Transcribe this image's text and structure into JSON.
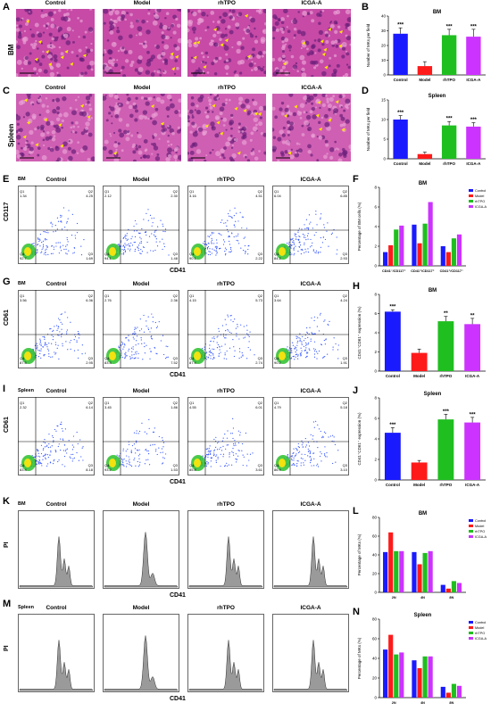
{
  "colors": {
    "control": "#1a1aff",
    "model": "#ff1a1a",
    "rhtpo": "#1fbf1f",
    "icga": "#cc33ff",
    "histo_bg": "#c64aa6",
    "flow_bg": "#ffffff"
  },
  "groups": [
    "Control",
    "Model",
    "rhTPO",
    "ICGA-A"
  ],
  "panels": {
    "A": {
      "letter": "A",
      "row": "BM"
    },
    "B": {
      "letter": "B"
    },
    "C": {
      "letter": "C",
      "row": "Spleen"
    },
    "D": {
      "letter": "D"
    },
    "E": {
      "letter": "E",
      "tissue": "BM",
      "ylabel": "CD117",
      "xlabel": "CD41",
      "quads": [
        {
          "q1": "1.34",
          "q2": "4.25",
          "q3": "1.69",
          "q4": "92.7"
        },
        {
          "q1": "2.12",
          "q2": "2.30",
          "q3": "1.48",
          "q4": "94.1"
        },
        {
          "q1": "3.16",
          "q2": "4.51",
          "q3": "2.22",
          "q4": "90.1"
        },
        {
          "q1": "6.04",
          "q2": "6.85",
          "q3": "2.93",
          "q4": "84.2"
        }
      ]
    },
    "F": {
      "letter": "F"
    },
    "G": {
      "letter": "G",
      "tissue": "BM",
      "ylabel": "CD61",
      "xlabel": "CD41",
      "quads": [
        {
          "q1": "3.56",
          "q2": "6.36",
          "q3": "2.95",
          "q4": "87.5"
        },
        {
          "q1": "2.76",
          "q2": "2.36",
          "q3": "7.52",
          "q4": "83.3"
        },
        {
          "q1": "4.15",
          "q2": "5.73",
          "q3": "2.74",
          "q4": "87.4"
        },
        {
          "q1": "3.64",
          "q2": "4.24",
          "q3": "1.91",
          "q4": "90.2"
        }
      ]
    },
    "H": {
      "letter": "H"
    },
    "I": {
      "letter": "I",
      "tissue": "Spleen",
      "ylabel": "CD61",
      "xlabel": "CD41",
      "quads": [
        {
          "q1": "2.32",
          "q2": "6.14",
          "q3": "8.18",
          "q4": "83.4"
        },
        {
          "q1": "3.45",
          "q2": "1.86",
          "q3": "1.53",
          "q4": "93.2"
        },
        {
          "q1": "4.55",
          "q2": "6.01",
          "q3": "3.61",
          "q4": "85.8"
        },
        {
          "q1": "4.79",
          "q2": "5.18",
          "q3": "3.10",
          "q4": "86.9"
        }
      ]
    },
    "J": {
      "letter": "J"
    },
    "K": {
      "letter": "K",
      "tissue": "BM",
      "ylabel": "PI",
      "xlabel": "CD41"
    },
    "L": {
      "letter": "L"
    },
    "M": {
      "letter": "M",
      "tissue": "Spleen",
      "ylabel": "PI",
      "xlabel": "CD41"
    },
    "N": {
      "letter": "N"
    }
  },
  "chart_data": [
    {
      "id": "B",
      "type": "bar",
      "title": "BM",
      "ylabel": "Number of MKs per field",
      "categories": [
        "Control",
        "Model",
        "rhTPO",
        "ICGA-A"
      ],
      "values": [
        28,
        6,
        27,
        26
      ],
      "errors": [
        4,
        3,
        4,
        5
      ],
      "sig": [
        "***",
        "",
        "***",
        "***"
      ],
      "ylim": [
        0,
        40
      ],
      "yticks": [
        0,
        10,
        20,
        30,
        40
      ]
    },
    {
      "id": "D",
      "type": "bar",
      "title": "Spleen",
      "ylabel": "Number of MKs per field",
      "categories": [
        "Control",
        "Model",
        "rhTPO",
        "ICGA-A"
      ],
      "values": [
        10,
        1.2,
        8.5,
        8.2
      ],
      "errors": [
        1,
        0.5,
        1,
        1
      ],
      "sig": [
        "***",
        "",
        "***",
        "***"
      ],
      "ylim": [
        0,
        15
      ],
      "yticks": [
        0,
        5,
        10,
        15
      ]
    },
    {
      "id": "F",
      "type": "bar",
      "title": "BM",
      "ylabel": "Percentage of BM cells (%)",
      "categories": [
        "CD41⁻/CD117⁺",
        "CD41⁺/CD117⁺",
        "CD41⁺/CD117⁻"
      ],
      "series": [
        {
          "name": "Control",
          "values": [
            1.4,
            4.2,
            2.0
          ]
        },
        {
          "name": "Model",
          "values": [
            2.1,
            2.3,
            1.4
          ]
        },
        {
          "name": "rhTPO",
          "values": [
            3.7,
            4.3,
            2.8
          ]
        },
        {
          "name": "ICGA-A",
          "values": [
            4.1,
            6.5,
            3.2
          ]
        }
      ],
      "ylim": [
        0,
        8
      ],
      "yticks": [
        0,
        2,
        4,
        6,
        8
      ],
      "legend": "top-right"
    },
    {
      "id": "H",
      "type": "bar",
      "title": "BM",
      "ylabel": "CD41⁺CD61⁺ expression (%)",
      "categories": [
        "Control",
        "Model",
        "rhTPO",
        "ICGA-A"
      ],
      "values": [
        6.2,
        1.9,
        5.2,
        4.9
      ],
      "errors": [
        0.2,
        0.4,
        0.5,
        0.6
      ],
      "sig": [
        "***",
        "",
        "**",
        "**"
      ],
      "ylim": [
        0,
        8
      ],
      "yticks": [
        0,
        2,
        4,
        6,
        8
      ]
    },
    {
      "id": "J",
      "type": "bar",
      "title": "Spleen",
      "ylabel": "CD41⁺CD61⁺ expression (%)",
      "categories": [
        "Control",
        "Model",
        "rhTPO",
        "ICGA-A"
      ],
      "values": [
        4.6,
        1.7,
        5.9,
        5.6
      ],
      "errors": [
        0.5,
        0.2,
        0.5,
        0.5
      ],
      "sig": [
        "***",
        "",
        "***",
        "***"
      ],
      "ylim": [
        0,
        8
      ],
      "yticks": [
        0,
        2,
        4,
        6,
        8
      ]
    },
    {
      "id": "L",
      "type": "bar",
      "title": "BM",
      "ylabel": "Percentage of MKs (%)",
      "categories": [
        "2N",
        "4N",
        "8N"
      ],
      "series": [
        {
          "name": "Control",
          "values": [
            43,
            43,
            8
          ]
        },
        {
          "name": "Model",
          "values": [
            64,
            30,
            4
          ]
        },
        {
          "name": "rhTPO",
          "values": [
            44,
            42,
            12
          ]
        },
        {
          "name": "ICGA-A",
          "values": [
            44,
            44,
            10
          ]
        }
      ],
      "ylim": [
        0,
        80
      ],
      "yticks": [
        0,
        20,
        40,
        60,
        80
      ],
      "legend": "top-right"
    },
    {
      "id": "N",
      "type": "bar",
      "title": "Spleen",
      "ylabel": "Percentage of MKs (%)",
      "categories": [
        "2N",
        "4N",
        "8N"
      ],
      "series": [
        {
          "name": "Control",
          "values": [
            49,
            38,
            11
          ]
        },
        {
          "name": "Model",
          "values": [
            64,
            30,
            5
          ]
        },
        {
          "name": "rhTPO",
          "values": [
            44,
            42,
            14
          ]
        },
        {
          "name": "ICGA-A",
          "values": [
            46,
            42,
            12
          ]
        }
      ],
      "ylim": [
        0,
        80
      ],
      "yticks": [
        0,
        20,
        40,
        60,
        80
      ],
      "legend": "top-right"
    }
  ]
}
